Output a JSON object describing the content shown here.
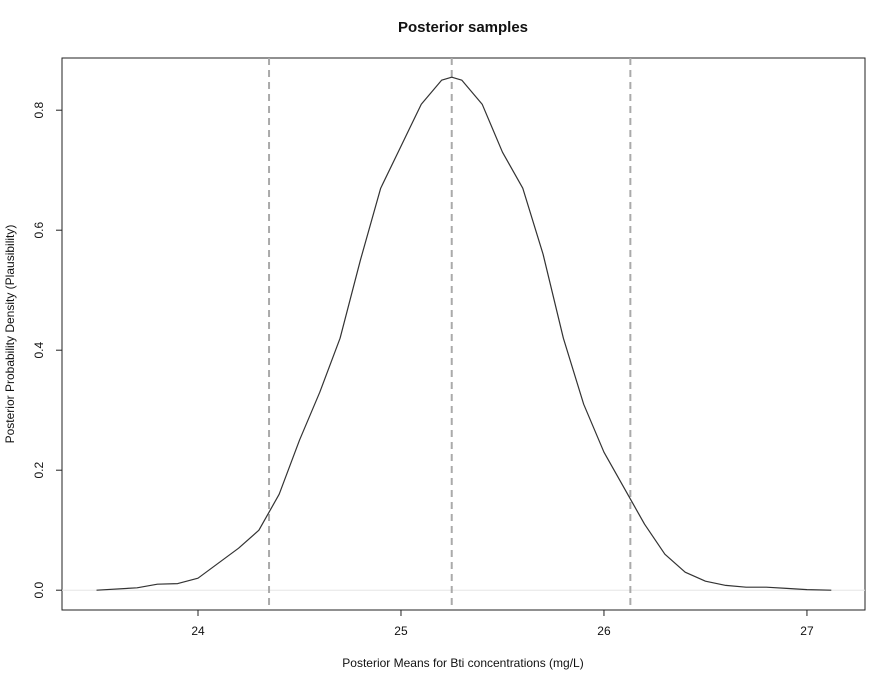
{
  "chart_data": {
    "type": "line",
    "title": "Posterior samples",
    "x_label": "Posterior Means for Bti concentrations (mg/L)",
    "y_label": "Posterior Probability Density (Plausibility)",
    "x": [
      23.5,
      23.7,
      23.8,
      23.9,
      24.0,
      24.1,
      24.2,
      24.3,
      24.35,
      24.4,
      24.5,
      24.6,
      24.7,
      24.8,
      24.9,
      25.0,
      25.1,
      25.2,
      25.25,
      25.3,
      25.4,
      25.5,
      25.6,
      25.7,
      25.8,
      25.9,
      26.0,
      26.1,
      26.2,
      26.3,
      26.4,
      26.5,
      26.6,
      26.7,
      26.8,
      26.9,
      27.0,
      27.12
    ],
    "series": [
      {
        "color": "#333333",
        "values": [
          0.0,
          0.004,
          0.01,
          0.011,
          0.02,
          0.045,
          0.07,
          0.1,
          0.13,
          0.16,
          0.25,
          0.33,
          0.42,
          0.55,
          0.67,
          0.74,
          0.81,
          0.85,
          0.855,
          0.85,
          0.81,
          0.73,
          0.67,
          0.56,
          0.42,
          0.31,
          0.23,
          0.17,
          0.11,
          0.06,
          0.03,
          0.015,
          0.008,
          0.005,
          0.005,
          0.003,
          0.001,
          0.0
        ]
      }
    ],
    "vlines": [
      24.35,
      25.25,
      26.13
    ],
    "vline_color": "#aaaaaa",
    "zero_line": true,
    "xlim": [
      23.33,
      27.286
    ],
    "ylim": [
      -0.033,
      0.887
    ],
    "xticks": [
      24,
      25,
      26,
      27
    ],
    "yticks": [
      {
        "value": 0,
        "label": "0.0"
      },
      0.2,
      0.4,
      0.6,
      0.8
    ]
  }
}
